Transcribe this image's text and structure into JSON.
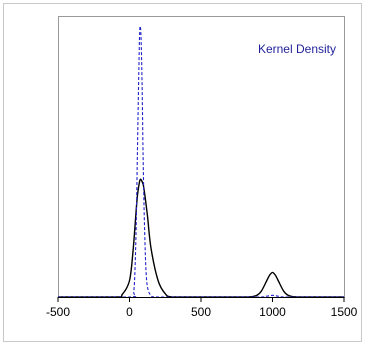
{
  "chart_data": {
    "type": "line",
    "title": "Kernel Density",
    "xlabel": "",
    "ylabel": "",
    "xlim": [
      -500,
      1500
    ],
    "xticks": [
      -500,
      0,
      500,
      1000,
      1500
    ],
    "xtick_labels": [
      "-500",
      "0",
      "500",
      "1000",
      "1500"
    ],
    "ylim": [
      0,
      1.0
    ],
    "y_axis_visible": false,
    "grid": false,
    "legend": "none",
    "title_color": "#1f1f9a",
    "series": [
      {
        "style": "solid",
        "color": "#000000",
        "x": [
          -500,
          -100,
          -50,
          0,
          25,
          50,
          60,
          75,
          90,
          100,
          125,
          150,
          200,
          250,
          300,
          500,
          800,
          880,
          920,
          960,
          980,
          1000,
          1020,
          1040,
          1080,
          1120,
          1200,
          1500
        ],
        "y": [
          0.0,
          0.0,
          0.01,
          0.06,
          0.17,
          0.34,
          0.39,
          0.43,
          0.42,
          0.4,
          0.3,
          0.18,
          0.06,
          0.012,
          0.0,
          0.0,
          0.0,
          0.004,
          0.02,
          0.06,
          0.08,
          0.09,
          0.08,
          0.06,
          0.02,
          0.004,
          0.0,
          0.0
        ]
      },
      {
        "style": "dashed",
        "color": "#1f1fcc",
        "x": [
          -500,
          0,
          30,
          45,
          55,
          65,
          72,
          80,
          88,
          95,
          105,
          120,
          150,
          200,
          500,
          900,
          960,
          1000,
          1040,
          1100,
          1500
        ],
        "y": [
          0.0,
          0.0,
          0.02,
          0.22,
          0.52,
          0.82,
          0.98,
          0.96,
          0.78,
          0.52,
          0.26,
          0.06,
          0.005,
          0.0,
          0.0,
          0.0,
          0.003,
          0.006,
          0.003,
          0.0,
          0.0
        ]
      }
    ]
  }
}
